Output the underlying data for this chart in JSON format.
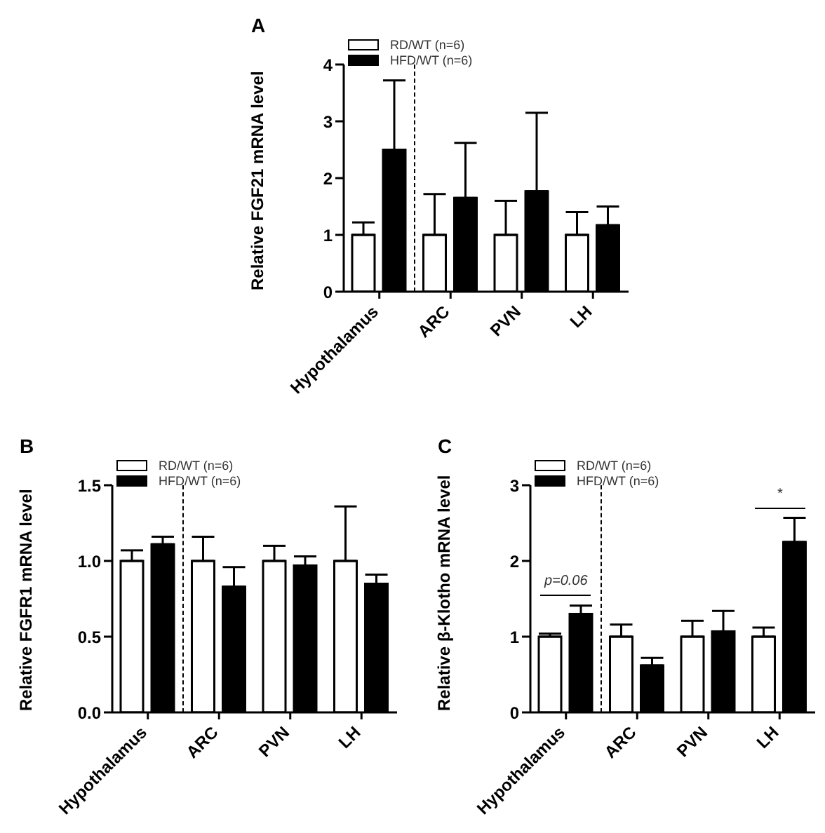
{
  "chart_data": [
    {
      "type": "bar",
      "title": "A",
      "ylabel": "Relative FGF21 mRNA level",
      "categories": [
        "Hypothalamus",
        "ARC",
        "PVN",
        "LH"
      ],
      "ylim": [
        0,
        4
      ],
      "yticks": [
        0,
        1,
        2,
        3,
        4
      ],
      "grid": false,
      "legend": "top left",
      "series": [
        {
          "name": "RD/WT (n=6)",
          "color": "#ffffff",
          "values": [
            1,
            1,
            1,
            1
          ],
          "errors": [
            [
              1,
              1.22
            ],
            [
              1,
              1.72
            ],
            [
              1,
              1.6
            ],
            [
              1,
              1.4
            ]
          ]
        },
        {
          "name": "HFD/WT (n=6)",
          "color": "#000000",
          "values": [
            2.5,
            1.65,
            1.77,
            1.17
          ],
          "errors": [
            [
              2.5,
              3.72
            ],
            [
              1.65,
              2.62
            ],
            [
              1.77,
              3.15
            ],
            [
              1.17,
              1.5
            ]
          ]
        }
      ]
    },
    {
      "type": "bar",
      "title": "B",
      "ylabel": "Relative FGFR1 mRNA level",
      "categories": [
        "Hypothalamus",
        "ARC",
        "PVN",
        "LH"
      ],
      "ylim": [
        0,
        1.5
      ],
      "yticks": [
        {
          "value": 0,
          "label": "0.0"
        },
        {
          "value": 0.5,
          "label": "0.5"
        },
        {
          "value": 1,
          "label": "1.0"
        },
        {
          "value": 1.5,
          "label": "1.5"
        }
      ],
      "grid": false,
      "legend": "top left",
      "series": [
        {
          "name": "RD/WT (n=6)",
          "color": "#ffffff",
          "values": [
            1,
            1,
            1,
            1
          ],
          "errors": [
            [
              1,
              1.07
            ],
            [
              1,
              1.16
            ],
            [
              1,
              1.1
            ],
            [
              1,
              1.36
            ]
          ]
        },
        {
          "name": "HFD/WT (n=6)",
          "color": "#000000",
          "values": [
            1.11,
            0.83,
            0.97,
            0.85
          ],
          "errors": [
            [
              1.11,
              1.16
            ],
            [
              0.83,
              0.96
            ],
            [
              0.97,
              1.03
            ],
            [
              0.85,
              0.91
            ]
          ]
        }
      ]
    },
    {
      "type": "bar",
      "title": "C",
      "ylabel": "Relative β-Klotho mRNA level",
      "categories": [
        "Hypothalamus",
        "ARC",
        "PVN",
        "LH"
      ],
      "ylim": [
        0,
        3
      ],
      "yticks": [
        0,
        1,
        2,
        3
      ],
      "grid": false,
      "legend": "top left",
      "annotations": [
        "p=0.06",
        "*"
      ],
      "series": [
        {
          "name": "RD/WT (n=6)",
          "color": "#ffffff",
          "values": [
            1,
            1,
            1,
            1
          ],
          "errors": [
            [
              1,
              1.04
            ],
            [
              1,
              1.16
            ],
            [
              1,
              1.21
            ],
            [
              1,
              1.12
            ]
          ]
        },
        {
          "name": "HFD/WT (n=6)",
          "color": "#000000",
          "values": [
            1.3,
            0.62,
            1.07,
            2.25
          ],
          "errors": [
            [
              1.3,
              1.41
            ],
            [
              0.62,
              0.72
            ],
            [
              1.07,
              1.34
            ],
            [
              2.25,
              2.57
            ]
          ]
        }
      ]
    }
  ]
}
